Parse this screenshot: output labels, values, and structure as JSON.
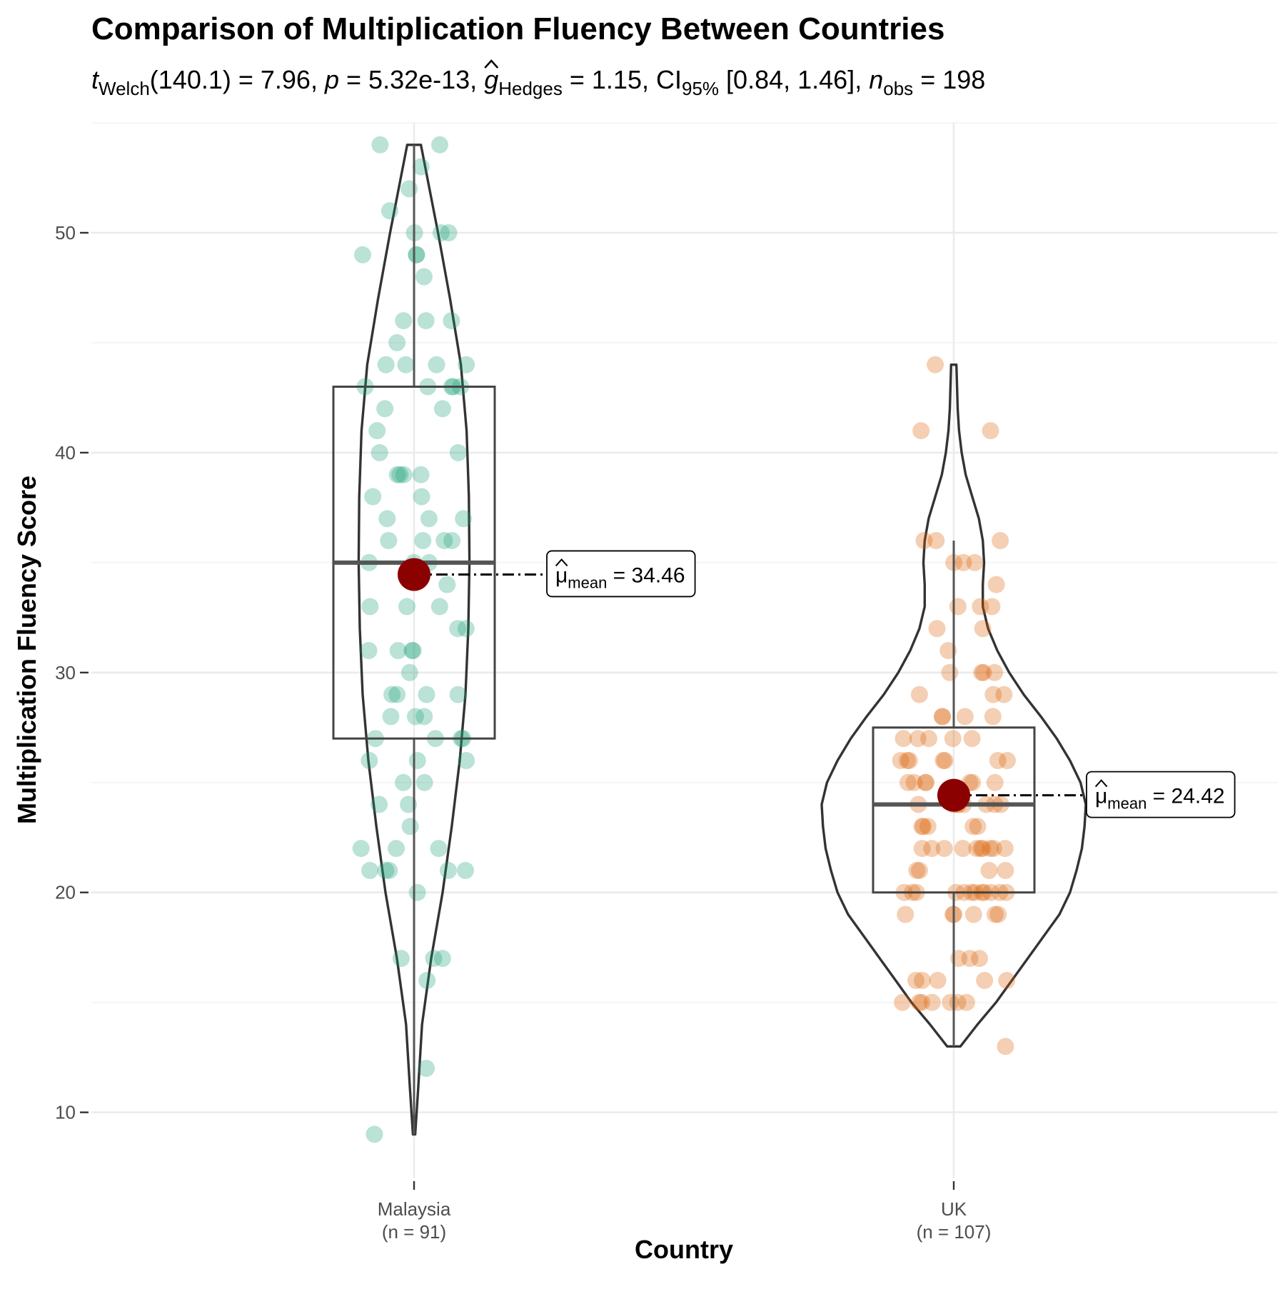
{
  "chart_data": {
    "type": "violin-box-scatter",
    "title": "Comparison of Multiplication Fluency Between Countries",
    "subtitle": {
      "stat_symbol": "t",
      "stat_sub": "Welch",
      "stat_value": "(140.1) = 7.96,",
      "p_symbol": "p",
      "p_value": "= 5.32e-13,",
      "effect_symbol": "g",
      "effect_sub": "Hedges",
      "effect_value": "= 1.15, CI",
      "ci_sub": "95%",
      "ci_value": "[0.84, 1.46],",
      "n_symbol": "n",
      "n_sub": "obs",
      "n_value": "= 198"
    },
    "xlabel": "Country",
    "ylabel": "Multiplication Fluency Score",
    "ylim": [
      7,
      55
    ],
    "yticks": [
      10,
      20,
      30,
      40,
      50
    ],
    "grid": true,
    "groups": [
      {
        "name": "Malaysia",
        "n_label": "(n = 91)",
        "color": "#1b9e77",
        "mean": 34.46,
        "mean_label_sym": "μ",
        "mean_label_sub": "mean",
        "mean_label_value": "= 34.46",
        "box": {
          "q1": 27,
          "median": 35,
          "q3": 43,
          "whisker_low": 9,
          "whisker_high": 54
        },
        "violin": [
          [
            9,
            0.02
          ],
          [
            11,
            0.07
          ],
          [
            14,
            0.14
          ],
          [
            17,
            0.3
          ],
          [
            20,
            0.5
          ],
          [
            23,
            0.66
          ],
          [
            26,
            0.8
          ],
          [
            29,
            0.9
          ],
          [
            32,
            0.95
          ],
          [
            35,
            0.97
          ],
          [
            38,
            0.96
          ],
          [
            41,
            0.92
          ],
          [
            44,
            0.82
          ],
          [
            47,
            0.63
          ],
          [
            50,
            0.42
          ],
          [
            52,
            0.27
          ],
          [
            54,
            0.12
          ]
        ],
        "points": [
          54,
          54,
          53,
          52,
          51,
          50,
          50,
          50,
          49,
          49,
          49,
          48,
          46,
          46,
          46,
          45,
          44,
          44,
          44,
          44,
          43,
          43,
          43,
          43,
          43,
          42,
          42,
          41,
          40,
          40,
          39,
          39,
          39,
          39,
          38,
          38,
          37,
          37,
          37,
          36,
          36,
          36,
          35,
          35,
          35,
          34,
          33,
          33,
          33,
          32,
          32,
          31,
          31,
          31,
          31,
          29,
          29,
          29,
          29,
          28,
          28,
          28,
          27,
          27,
          27,
          27,
          26,
          26,
          26,
          25,
          25,
          24,
          23,
          22,
          22,
          22,
          21,
          21,
          21,
          21,
          21,
          20,
          17,
          17,
          17,
          16,
          12,
          9,
          30,
          36,
          24
        ]
      },
      {
        "name": "UK",
        "n_label": "(n = 107)",
        "color": "#d95f02",
        "mean": 24.42,
        "mean_label_sym": "μ",
        "mean_label_sub": "mean",
        "mean_label_value": "= 24.42",
        "box": {
          "q1": 20,
          "median": 24,
          "q3": 27.5,
          "whisker_low": 13,
          "whisker_high": 36
        },
        "violin": [
          [
            13,
            0.05
          ],
          [
            14,
            0.18
          ],
          [
            15,
            0.32
          ],
          [
            16,
            0.44
          ],
          [
            17,
            0.56
          ],
          [
            18,
            0.68
          ],
          [
            19,
            0.8
          ],
          [
            20,
            0.88
          ],
          [
            21,
            0.93
          ],
          [
            22,
            0.97
          ],
          [
            23,
            0.99
          ],
          [
            24,
            1.0
          ],
          [
            25,
            0.96
          ],
          [
            26,
            0.88
          ],
          [
            27,
            0.78
          ],
          [
            28,
            0.66
          ],
          [
            29,
            0.53
          ],
          [
            30,
            0.42
          ],
          [
            31,
            0.33
          ],
          [
            32,
            0.26
          ],
          [
            33,
            0.22
          ],
          [
            34,
            0.22
          ],
          [
            35,
            0.23
          ],
          [
            36,
            0.22
          ],
          [
            37,
            0.19
          ],
          [
            38,
            0.14
          ],
          [
            39,
            0.09
          ],
          [
            40,
            0.06
          ],
          [
            41,
            0.04
          ],
          [
            42,
            0.03
          ],
          [
            44,
            0.02
          ]
        ],
        "points": [
          44,
          41,
          41,
          36,
          36,
          36,
          35,
          35,
          35,
          34,
          33,
          33,
          33,
          32,
          32,
          31,
          30,
          30,
          30,
          30,
          29,
          29,
          29,
          28,
          28,
          28,
          28,
          27,
          27,
          27,
          27,
          27,
          26,
          26,
          26,
          26,
          26,
          26,
          25,
          25,
          25,
          25,
          25,
          25,
          24,
          24,
          24,
          24,
          24,
          24,
          24,
          23,
          23,
          23,
          23,
          22,
          22,
          22,
          22,
          22,
          22,
          22,
          22,
          22,
          21,
          21,
          21,
          20,
          20,
          20,
          20,
          20,
          20,
          20,
          20,
          20,
          20,
          20,
          19,
          19,
          19,
          19,
          19,
          19,
          17,
          17,
          17,
          16,
          16,
          16,
          16,
          16,
          15,
          15,
          15,
          15,
          15,
          15,
          15,
          13,
          24,
          25,
          22,
          23,
          21,
          26,
          20
        ]
      }
    ]
  }
}
